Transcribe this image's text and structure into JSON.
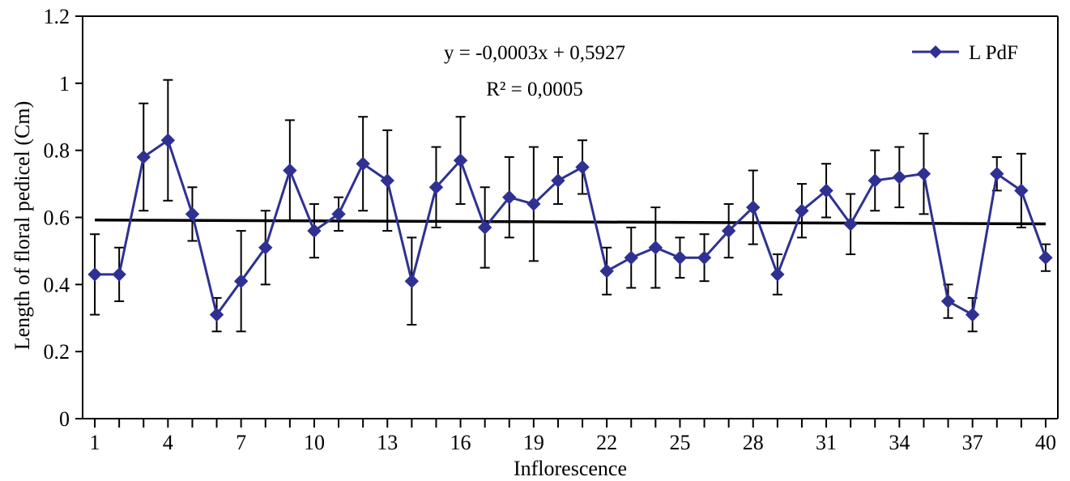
{
  "chart_data": {
    "type": "line",
    "xlabel": "Inflorescence",
    "ylabel": "Length of floral pedicel (Cm)",
    "xlim": [
      1,
      40
    ],
    "ylim": [
      0,
      1.2
    ],
    "x_ticks": [
      1,
      4,
      7,
      10,
      13,
      16,
      19,
      22,
      25,
      28,
      31,
      34,
      37,
      40
    ],
    "y_ticks": [
      "0",
      "0.2",
      "0.4",
      "0.6",
      "0.8",
      "1",
      "1.2"
    ],
    "y_tick_values": [
      0,
      0.2,
      0.4,
      0.6,
      0.8,
      1,
      1.2
    ],
    "legend_position": "top-right",
    "series": [
      {
        "name": "L PdF",
        "color": "#2e3192",
        "marker": "diamond",
        "x": [
          1,
          2,
          3,
          4,
          5,
          6,
          7,
          8,
          9,
          10,
          11,
          12,
          13,
          14,
          15,
          16,
          17,
          18,
          19,
          20,
          21,
          22,
          23,
          24,
          25,
          26,
          27,
          28,
          29,
          30,
          31,
          32,
          33,
          34,
          35,
          36,
          37,
          38,
          39,
          40
        ],
        "values": [
          0.43,
          0.43,
          0.78,
          0.83,
          0.61,
          0.31,
          0.41,
          0.51,
          0.74,
          0.56,
          0.61,
          0.76,
          0.71,
          0.41,
          0.69,
          0.77,
          0.57,
          0.66,
          0.64,
          0.71,
          0.75,
          0.44,
          0.48,
          0.51,
          0.48,
          0.48,
          0.56,
          0.63,
          0.43,
          0.62,
          0.68,
          0.58,
          0.71,
          0.72,
          0.73,
          0.35,
          0.31,
          0.73,
          0.68,
          0.48
        ],
        "error": [
          0.12,
          0.08,
          0.16,
          0.18,
          0.08,
          0.05,
          0.15,
          0.11,
          0.15,
          0.08,
          0.05,
          0.14,
          0.15,
          0.13,
          0.12,
          0.13,
          0.12,
          0.12,
          0.17,
          0.07,
          0.08,
          0.07,
          0.09,
          0.12,
          0.06,
          0.07,
          0.08,
          0.11,
          0.06,
          0.08,
          0.08,
          0.09,
          0.09,
          0.09,
          0.12,
          0.05,
          0.05,
          0.05,
          0.11,
          0.04
        ]
      }
    ],
    "trendline": {
      "slope": -0.0003,
      "intercept": 0.5927,
      "color": "#000000",
      "equation": "y = -0,0003x + 0,5927",
      "r_squared": "R² = 0,0005"
    }
  }
}
